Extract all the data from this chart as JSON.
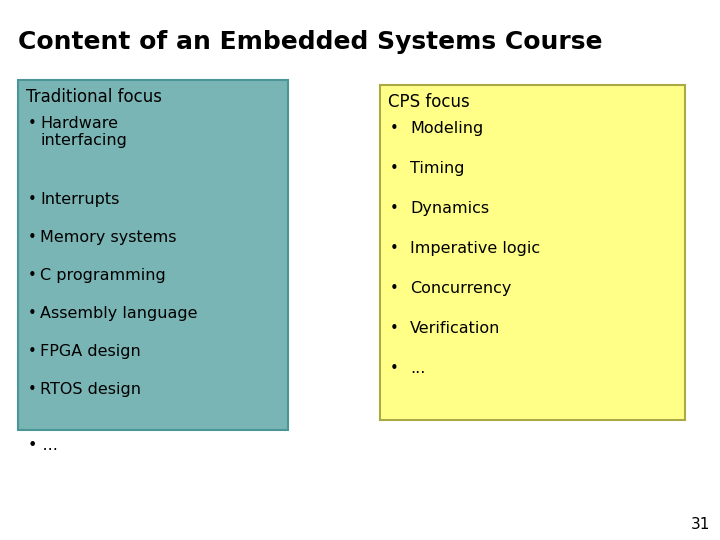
{
  "title": "Content of an Embedded Systems Course",
  "title_fontsize": 18,
  "title_fontweight": "bold",
  "background_color": "#ffffff",
  "left_box_color": "#7ab5b5",
  "right_box_color": "#ffff88",
  "left_box_border": "#4a9595",
  "right_box_border": "#aaaa44",
  "left_title": "Traditional focus",
  "left_items": [
    "Hardware\ninterfacing",
    "Interrupts",
    "Memory systems",
    "C programming",
    "Assembly language",
    "FPGA design",
    "RTOS design"
  ],
  "right_title": "CPS focus",
  "right_items": [
    "Modeling",
    "Timing",
    "Dynamics",
    "Imperative logic",
    "Concurrency",
    "Verification",
    "..."
  ],
  "item_fontsize": 11.5,
  "title_item_fontsize": 12,
  "page_number": "31",
  "page_number_fontsize": 11
}
